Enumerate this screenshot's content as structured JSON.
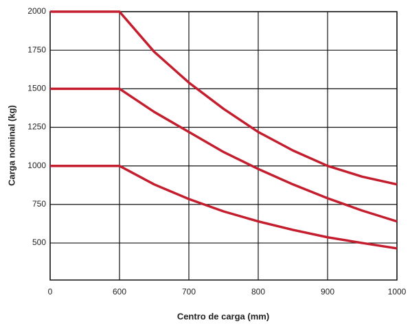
{
  "chart_data": {
    "type": "line",
    "xlabel": "Centro de carga (mm)",
    "ylabel": "Carga nominal (kg)",
    "x": [
      0,
      600,
      650,
      700,
      750,
      800,
      850,
      900,
      950,
      1000
    ],
    "series": [
      {
        "color": "#c41e2e",
        "values": [
          2000,
          2000,
          1740,
          1540,
          1370,
          1220,
          1100,
          1000,
          930,
          880
        ]
      },
      {
        "color": "#c41e2e",
        "values": [
          1500,
          1500,
          1350,
          1220,
          1090,
          980,
          880,
          790,
          710,
          640
        ]
      },
      {
        "color": "#c41e2e",
        "values": [
          1000,
          1000,
          880,
          785,
          705,
          640,
          585,
          537,
          500,
          465
        ]
      }
    ],
    "xlim": [
      0,
      1000
    ],
    "xticks": [
      0,
      600,
      700,
      800,
      900,
      1000
    ],
    "ylim": [
      260,
      2000
    ],
    "yticks": [
      500,
      750,
      1000,
      1250,
      1500,
      1750,
      2000
    ],
    "grid": true
  }
}
